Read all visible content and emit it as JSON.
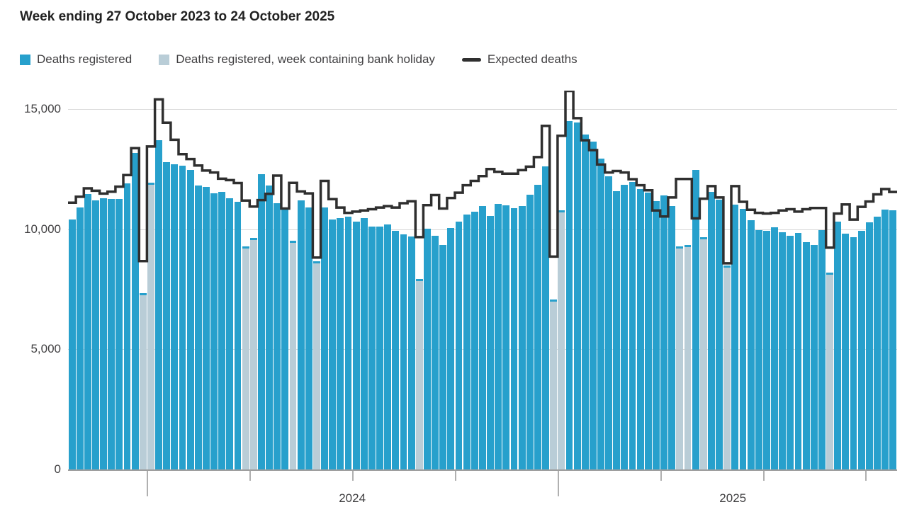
{
  "title": "Week ending 27 October 2023 to 24 October 2025",
  "legend": [
    {
      "label": "Deaths registered",
      "swatch": "square-icon",
      "color": "#27A0CC"
    },
    {
      "label": "Deaths registered, week containing bank holiday",
      "swatch": "square-icon",
      "color": "#B9CDD7"
    },
    {
      "label": "Expected deaths",
      "swatch": "line-icon",
      "color": "#2F2F2F"
    }
  ],
  "colors": {
    "bar": "#27A0CC",
    "bar_bank_holiday": "#B9CDD7",
    "expected_line": "#2F2F2F",
    "gridline": "#d9d9d9",
    "axis": "#9e9e9e",
    "text": "#414042"
  },
  "y_axis": {
    "tick_labels": [
      "0",
      "5,000",
      "10,000",
      "15,000"
    ],
    "tick_values": [
      0,
      5000,
      10000,
      15000
    ],
    "max_value": 15000
  },
  "x_axis": {
    "year_labels": [
      {
        "text": "2024",
        "position_weeks": 36
      },
      {
        "text": "2025",
        "position_weeks": 84.2
      }
    ],
    "major_tick_weeks": [
      10,
      62
    ],
    "minor_tick_weeks": [
      23,
      36,
      49,
      75,
      88,
      101
    ]
  },
  "chart_data": {
    "type": "bar+line",
    "x_description": "105 weekly bars, week ending 27 October 2023 to week ending 24 October 2025",
    "first_week_label": "27 October 2023",
    "last_week_label": "24 October 2025",
    "ylim": [
      0,
      15750
    ],
    "grid": "horizontal",
    "legend_position": "top",
    "series": [
      {
        "name": "Deaths registered",
        "type": "bar",
        "values": [
          10400,
          10900,
          11450,
          11200,
          11300,
          11270,
          11270,
          11920,
          13180,
          7340,
          11930,
          13710,
          12780,
          12700,
          12630,
          12480,
          11810,
          11770,
          11480,
          11550,
          11290,
          11150,
          9290,
          9630,
          12280,
          11810,
          11080,
          10810,
          9530,
          11190,
          10890,
          8650,
          10890,
          10410,
          10470,
          10530,
          10310,
          10460,
          10110,
          10110,
          10190,
          9940,
          9790,
          9710,
          7940,
          10010,
          9740,
          9350,
          10040,
          10310,
          10600,
          10730,
          10960,
          10560,
          11060,
          10980,
          10860,
          10960,
          11420,
          11860,
          12600,
          7080,
          10780,
          14500,
          14450,
          13940,
          13640,
          12950,
          12210,
          11570,
          11860,
          11960,
          11670,
          11520,
          11170,
          11400,
          10960,
          9270,
          9330,
          12460,
          9660,
          11540,
          11240,
          8480,
          11030,
          10850,
          10380,
          9960,
          9940,
          10090,
          9860,
          9740,
          9840,
          9470,
          9350,
          9960,
          8190,
          10310,
          9820,
          9670,
          9940,
          10290,
          10530,
          10830,
          10790
        ]
      },
      {
        "name": "Expected deaths",
        "type": "step-line",
        "values": [
          11100,
          11350,
          11700,
          11600,
          11480,
          11560,
          11770,
          12250,
          13370,
          8670,
          13440,
          15400,
          14430,
          13720,
          13120,
          12920,
          12650,
          12440,
          12360,
          12100,
          12040,
          11920,
          11190,
          10940,
          11210,
          11470,
          12230,
          10860,
          11930,
          11570,
          11490,
          8820,
          12010,
          11250,
          10900,
          10680,
          10730,
          10780,
          10830,
          10900,
          10960,
          10900,
          11080,
          11160,
          9670,
          11000,
          11420,
          10860,
          11300,
          11520,
          11830,
          12010,
          12210,
          12500,
          12390,
          12310,
          12310,
          12460,
          12600,
          13000,
          14300,
          8860,
          13890,
          15750,
          14620,
          13700,
          13290,
          12690,
          12360,
          12420,
          12360,
          12080,
          11830,
          11620,
          10780,
          10530,
          11320,
          12090,
          12090,
          10450,
          11270,
          11790,
          11320,
          8580,
          11790,
          11140,
          10810,
          10680,
          10650,
          10680,
          10780,
          10830,
          10730,
          10830,
          10880,
          10880,
          9230,
          10650,
          11030,
          10400,
          10930,
          11150,
          11450,
          11670,
          11550
        ]
      }
    ],
    "bank_holiday_week_indices": [
      9,
      10,
      22,
      23,
      28,
      31,
      44,
      61,
      62,
      77,
      78,
      80,
      83,
      96
    ]
  }
}
